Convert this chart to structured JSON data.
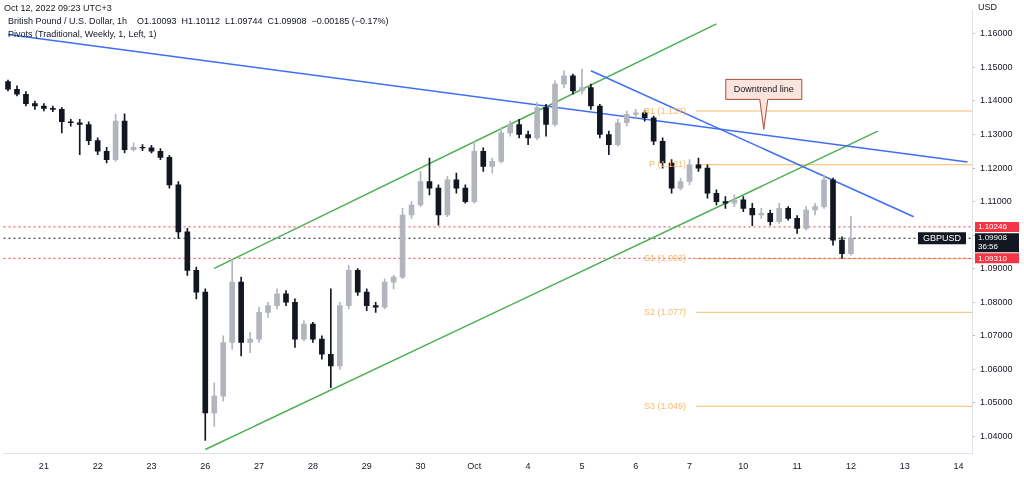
{
  "chart_data": {
    "type": "candlestick",
    "title": "British Pound / U.S. Dollar, 1h",
    "subtitle": "O1.10093  H1.10112  L1.09744  C1.09908  −0.00185 (−0.17%)",
    "ylabel": "USD",
    "annotations": [
      "Oct 12, 2022 09:23 UTC+3",
      "Pivots (Traditional, Weekly, 1, Left, 1)",
      "Downtrend line",
      "GBPUSD"
    ],
    "categories": [
      null,
      null,
      null,
      null,
      "21",
      null,
      null,
      null,
      null,
      null,
      "22",
      null,
      null,
      null,
      null,
      null,
      "23",
      null,
      null,
      null,
      null,
      null,
      "26",
      null,
      null,
      null,
      null,
      null,
      "27",
      null,
      null,
      null,
      null,
      null,
      "28",
      null,
      null,
      null,
      null,
      null,
      "29",
      null,
      null,
      null,
      null,
      null,
      "30",
      null,
      null,
      null,
      null,
      null,
      "Oct",
      null,
      null,
      null,
      null,
      null,
      "4",
      null,
      null,
      null,
      null,
      null,
      "5",
      null,
      null,
      null,
      null,
      null,
      "6",
      null,
      null,
      null,
      null,
      null,
      "7",
      null,
      null,
      null,
      null,
      null,
      "10",
      null,
      null,
      null,
      null,
      null,
      "11",
      null,
      null,
      null,
      null,
      null,
      "12",
      null,
      null,
      null,
      null,
      null,
      "13",
      null,
      null,
      null,
      null,
      null,
      "14",
      null
    ],
    "ylim": [
      1.035,
      1.167
    ],
    "yticks": [
      {
        "value": 1.04,
        "label": "1.04000"
      },
      {
        "value": 1.05,
        "label": "1.05000"
      },
      {
        "value": 1.06,
        "label": "1.06000"
      },
      {
        "value": 1.07,
        "label": "1.07000"
      },
      {
        "value": 1.08,
        "label": "1.08000"
      },
      {
        "value": 1.09,
        "label": "1.09000"
      },
      {
        "value": 1.1,
        "label": null
      },
      {
        "value": 1.11,
        "label": "1.11000"
      },
      {
        "value": 1.12,
        "label": "1.12000"
      },
      {
        "value": 1.13,
        "label": "1.13000"
      },
      {
        "value": 1.14,
        "label": "1.14000"
      },
      {
        "value": 1.15,
        "label": "1.15000"
      },
      {
        "value": 1.16,
        "label": "1.16000"
      }
    ],
    "ref_lines": [
      {
        "axis": "y",
        "value": 1.137,
        "label": "R1 (1.137)",
        "color": "#f9b96e",
        "line_style": "solid"
      },
      {
        "axis": "y",
        "value": 1.121,
        "label": "P (1.121)",
        "color": "#f9b96e",
        "line_style": "solid"
      },
      {
        "axis": "y",
        "value": 1.093,
        "label": "S1 (1.093)",
        "color": "#f9b96e",
        "line_style": "solid"
      },
      {
        "axis": "y",
        "value": 1.077,
        "label": "S2 (1.077)",
        "color": "#f9b96e",
        "line_style": "solid"
      },
      {
        "axis": "y",
        "value": 1.049,
        "label": "S3 (1.049)",
        "color": "#f9b96e",
        "line_style": "solid"
      },
      {
        "axis": "y",
        "value": 1.10246,
        "label": "1.10246",
        "color": "#f23645",
        "line_style": "dotted"
      },
      {
        "axis": "y",
        "value": 1.0931,
        "label": "1.09310",
        "color": "#f23645",
        "line_style": "dotted"
      },
      {
        "axis": "y",
        "value": 1.09908,
        "label": "1.09908\n36:56",
        "color": "#131722",
        "line_style": "dotted"
      }
    ],
    "series": [
      {
        "colors": [
          "#131722",
          "#131722",
          "#131722",
          "#131722",
          "#131722",
          "#131722",
          "#131722",
          "#131722",
          "#131722",
          "#131722",
          "#131722",
          "#131722",
          "#b2b5be",
          "#131722",
          "#b2b5be",
          "#131722",
          "#131722",
          "#131722",
          "#131722",
          "#131722",
          "#131722",
          "#131722",
          "#131722",
          "#b2b5be",
          "#b2b5be",
          "#b2b5be",
          "#131722",
          "#b2b5be",
          "#b2b5be",
          "#b2b5be",
          "#b2b5be",
          "#131722",
          "#131722",
          "#b2b5be",
          "#131722",
          "#131722",
          "#131722",
          "#b2b5be",
          "#b2b5be",
          "#131722",
          "#131722",
          "#131722",
          "#b2b5be",
          "#b2b5be",
          "#b2b5be",
          "#b2b5be",
          "#b2b5be",
          "#131722",
          "#131722",
          "#b2b5be",
          "#131722",
          "#131722",
          "#b2b5be",
          "#131722",
          "#b2b5be",
          "#b2b5be",
          "#b2b5be",
          "#131722",
          "#131722",
          "#b2b5be",
          "#131722",
          "#b2b5be",
          "#b2b5be",
          "#131722",
          "#b2b5be",
          "#131722",
          "#131722",
          "#131722",
          "#b2b5be",
          "#b2b5be",
          "#b2b5be",
          "#131722",
          "#131722",
          "#131722",
          "#131722",
          "#b2b5be",
          "#b2b5be",
          "#131722",
          "#131722",
          "#131722",
          "#131722",
          "#b2b5be",
          "#131722",
          "#131722",
          "#b2b5be",
          "#131722",
          "#b2b5be",
          "#131722",
          "#131722",
          "#b2b5be",
          "#b2b5be",
          "#b2b5be",
          "#131722",
          "#131722",
          "#b2b5be",
          null,
          null,
          null,
          null,
          null,
          null,
          null,
          null,
          null,
          null,
          null,
          null,
          null
        ],
        "ohlc": [
          [
            1.1458,
            1.1462,
            1.143,
            1.1435
          ],
          [
            1.1435,
            1.1445,
            1.1415,
            1.142
          ],
          [
            1.142,
            1.1428,
            1.1385,
            1.1392
          ],
          [
            1.1392,
            1.14,
            1.1375,
            1.1385
          ],
          [
            1.1385,
            1.1392,
            1.137,
            1.1378
          ],
          [
            1.1378,
            1.1385,
            1.1368,
            1.1375
          ],
          [
            1.1375,
            1.138,
            1.1305,
            1.1338
          ],
          [
            1.1338,
            1.1345,
            1.1325,
            1.1335
          ],
          [
            1.1335,
            1.1345,
            1.124,
            1.133
          ],
          [
            1.133,
            1.1338,
            1.127,
            1.1282
          ],
          [
            1.1282,
            1.129,
            1.124,
            1.125
          ],
          [
            1.125,
            1.1262,
            1.1215,
            1.1225
          ],
          [
            1.1225,
            1.136,
            1.122,
            1.134
          ],
          [
            1.134,
            1.1362,
            1.1245,
            1.1255
          ],
          [
            1.1255,
            1.1275,
            1.125,
            1.1262
          ],
          [
            1.1262,
            1.127,
            1.1252,
            1.126
          ],
          [
            1.126,
            1.1268,
            1.1245,
            1.125
          ],
          [
            1.125,
            1.1258,
            1.1225,
            1.1232
          ],
          [
            1.1232,
            1.1238,
            1.114,
            1.115
          ],
          [
            1.115,
            1.116,
            1.099,
            1.101
          ],
          [
            1.101,
            1.102,
            1.088,
            1.0895
          ],
          [
            1.0895,
            1.0905,
            1.081,
            1.083
          ],
          [
            1.083,
            1.084,
            1.0388,
            1.047
          ],
          [
            1.047,
            1.056,
            1.043,
            1.052
          ],
          [
            1.052,
            1.07,
            1.0505,
            1.068
          ],
          [
            1.068,
            1.0928,
            1.066,
            1.086
          ],
          [
            1.086,
            1.0875,
            1.064,
            1.068
          ],
          [
            1.068,
            1.071,
            1.065,
            1.069
          ],
          [
            1.069,
            1.0785,
            1.068,
            1.077
          ],
          [
            1.077,
            1.08,
            1.0755,
            1.079
          ],
          [
            1.079,
            1.084,
            1.078,
            1.0825
          ],
          [
            1.0825,
            1.0835,
            1.079,
            1.08
          ],
          [
            1.08,
            1.081,
            1.0665,
            1.069
          ],
          [
            1.069,
            1.0745,
            1.0685,
            1.0735
          ],
          [
            1.0735,
            1.074,
            1.068,
            1.069
          ],
          [
            1.069,
            1.07,
            1.063,
            1.0645
          ],
          [
            1.0645,
            1.084,
            1.0545,
            1.061
          ],
          [
            1.061,
            1.08,
            1.06,
            1.079
          ],
          [
            1.079,
            1.091,
            1.078,
            1.0895
          ],
          [
            1.0895,
            1.09,
            1.082,
            1.083
          ],
          [
            1.083,
            1.084,
            1.0775,
            1.079
          ],
          [
            1.079,
            1.08,
            1.077,
            1.0785
          ],
          [
            1.0785,
            1.087,
            1.078,
            1.086
          ],
          [
            1.086,
            1.088,
            1.084,
            1.0875
          ],
          [
            1.0875,
            1.108,
            1.087,
            1.106
          ],
          [
            1.106,
            1.11,
            1.105,
            1.109
          ],
          [
            1.109,
            1.119,
            1.1085,
            1.116
          ],
          [
            1.116,
            1.123,
            1.112,
            1.114
          ],
          [
            1.114,
            1.115,
            1.103,
            1.106
          ],
          [
            1.106,
            1.1175,
            1.1055,
            1.1165
          ],
          [
            1.1165,
            1.1185,
            1.1125,
            1.114
          ],
          [
            1.114,
            1.115,
            1.1095,
            1.11
          ],
          [
            1.11,
            1.128,
            1.1095,
            1.125
          ],
          [
            1.125,
            1.126,
            1.119,
            1.1205
          ],
          [
            1.1205,
            1.123,
            1.1185,
            1.122
          ],
          [
            1.122,
            1.132,
            1.1215,
            1.1305
          ],
          [
            1.1305,
            1.134,
            1.1295,
            1.133
          ],
          [
            1.133,
            1.1345,
            1.129,
            1.13
          ],
          [
            1.13,
            1.131,
            1.127,
            1.129
          ],
          [
            1.129,
            1.1395,
            1.1285,
            1.138
          ],
          [
            1.138,
            1.139,
            1.1295,
            1.133
          ],
          [
            1.133,
            1.146,
            1.1325,
            1.145
          ],
          [
            1.145,
            1.149,
            1.144,
            1.1475
          ],
          [
            1.1475,
            1.148,
            1.142,
            1.143
          ],
          [
            1.143,
            1.1495,
            1.142,
            1.144
          ],
          [
            1.144,
            1.145,
            1.1375,
            1.1385
          ],
          [
            1.1385,
            1.139,
            1.129,
            1.13
          ],
          [
            1.13,
            1.131,
            1.124,
            1.127
          ],
          [
            1.127,
            1.1345,
            1.1265,
            1.1335
          ],
          [
            1.1335,
            1.137,
            1.1325,
            1.136
          ],
          [
            1.136,
            1.1375,
            1.135,
            1.1365
          ],
          [
            1.1365,
            1.1372,
            1.134,
            1.135
          ],
          [
            1.135,
            1.1355,
            1.127,
            1.128
          ],
          [
            1.128,
            1.129,
            1.12,
            1.1215
          ],
          [
            1.1215,
            1.1225,
            1.1125,
            1.114
          ],
          [
            1.114,
            1.117,
            1.1135,
            1.116
          ],
          [
            1.116,
            1.1225,
            1.115,
            1.121
          ],
          [
            1.121,
            1.123,
            1.119,
            1.12
          ],
          [
            1.12,
            1.121,
            1.111,
            1.1125
          ],
          [
            1.1125,
            1.1135,
            1.109,
            1.11
          ],
          [
            1.11,
            1.1115,
            1.108,
            1.1095
          ],
          [
            1.1095,
            1.112,
            1.1085,
            1.1105
          ],
          [
            1.1105,
            1.1115,
            1.107,
            1.108
          ],
          [
            1.108,
            1.1095,
            1.1028,
            1.106
          ],
          [
            1.106,
            1.108,
            1.105,
            1.1065
          ],
          [
            1.1065,
            1.1075,
            1.103,
            1.104
          ],
          [
            1.104,
            1.1095,
            1.1035,
            1.108
          ],
          [
            1.108,
            1.1085,
            1.1045,
            1.105
          ],
          [
            1.105,
            1.1058,
            1.1005,
            1.102
          ],
          [
            1.102,
            1.1085,
            1.1015,
            1.1075
          ],
          [
            1.1075,
            1.1095,
            1.106,
            1.1085
          ],
          [
            1.1085,
            1.118,
            1.108,
            1.1165
          ],
          [
            1.1165,
            1.117,
            1.097,
            1.0985
          ],
          [
            1.0985,
            1.0995,
            1.0931,
            1.0945
          ],
          [
            1.0945,
            1.1056,
            1.094,
            1.09908
          ],
          null,
          null,
          null,
          null,
          null,
          null,
          null,
          null,
          null,
          null,
          null,
          null,
          null
        ]
      },
      {
        "type": "line",
        "color": "#3d6ef5",
        "values": [
          1.1598,
          null,
          null,
          null,
          null,
          null,
          null,
          null,
          null,
          null,
          null,
          null,
          null,
          null,
          null,
          null,
          null,
          null,
          null,
          null,
          null,
          null,
          null,
          null,
          null,
          null,
          null,
          null,
          null,
          null,
          null,
          null,
          null,
          null,
          null,
          null,
          null,
          null,
          null,
          null,
          null,
          null,
          null,
          null,
          null,
          null,
          null,
          null,
          null,
          null,
          null,
          null,
          null,
          null,
          null,
          null,
          null,
          null,
          null,
          null,
          null,
          null,
          null,
          null,
          null,
          null,
          null,
          null,
          null,
          null,
          null,
          null,
          null,
          null,
          null,
          null,
          null,
          null,
          null,
          null,
          null,
          null,
          null,
          null,
          null,
          null,
          null,
          null,
          null,
          null,
          null,
          null,
          null,
          null,
          null,
          null,
          null,
          null,
          null,
          null,
          null,
          null,
          null,
          null,
          null,
          null,
          null,
          1.1218
        ]
      },
      {
        "type": "line",
        "color": "#3d6ef5",
        "values": [
          null,
          null,
          null,
          null,
          null,
          null,
          null,
          null,
          null,
          null,
          null,
          null,
          null,
          null,
          null,
          null,
          null,
          null,
          null,
          null,
          null,
          null,
          null,
          null,
          null,
          null,
          null,
          null,
          null,
          null,
          null,
          null,
          null,
          null,
          null,
          null,
          null,
          null,
          null,
          null,
          null,
          null,
          null,
          null,
          null,
          null,
          null,
          null,
          null,
          null,
          null,
          null,
          null,
          null,
          null,
          null,
          null,
          null,
          null,
          null,
          null,
          null,
          null,
          null,
          null,
          1.149,
          null,
          null,
          null,
          null,
          null,
          null,
          null,
          null,
          null,
          null,
          null,
          null,
          null,
          null,
          null,
          null,
          null,
          null,
          null,
          null,
          null,
          null,
          null,
          null,
          null,
          null,
          null,
          null,
          null,
          null,
          null,
          null,
          null,
          null,
          null,
          1.1055,
          null,
          null,
          null,
          null,
          null,
          null
        ]
      },
      {
        "type": "line",
        "color": "#4caf50",
        "values": [
          null,
          null,
          null,
          null,
          null,
          null,
          null,
          null,
          null,
          null,
          null,
          null,
          null,
          null,
          null,
          null,
          null,
          null,
          null,
          null,
          null,
          null,
          null,
          1.0901,
          null,
          null,
          null,
          null,
          null,
          null,
          null,
          null,
          null,
          null,
          null,
          null,
          null,
          null,
          null,
          null,
          null,
          null,
          null,
          null,
          null,
          null,
          null,
          null,
          null,
          null,
          null,
          null,
          null,
          null,
          null,
          null,
          null,
          null,
          null,
          null,
          null,
          null,
          null,
          null,
          null,
          null,
          null,
          null,
          null,
          null,
          null,
          null,
          null,
          null,
          null,
          null,
          null,
          null,
          null,
          1.163,
          null,
          null,
          null,
          null,
          null,
          null,
          null,
          null,
          null,
          null,
          null,
          null,
          null,
          null,
          null,
          null,
          null,
          null,
          null,
          null,
          null,
          null,
          null,
          null,
          null,
          null,
          null,
          null
        ]
      },
      {
        "type": "line",
        "color": "#4caf50",
        "values": [
          null,
          null,
          null,
          null,
          null,
          null,
          null,
          null,
          null,
          null,
          null,
          null,
          null,
          null,
          null,
          null,
          null,
          null,
          null,
          null,
          null,
          null,
          1.0361,
          null,
          null,
          null,
          null,
          null,
          null,
          null,
          null,
          null,
          null,
          null,
          null,
          null,
          null,
          null,
          null,
          null,
          null,
          null,
          null,
          null,
          null,
          null,
          null,
          null,
          null,
          null,
          null,
          null,
          null,
          null,
          null,
          null,
          null,
          null,
          null,
          null,
          null,
          null,
          null,
          null,
          null,
          null,
          null,
          null,
          null,
          null,
          null,
          null,
          null,
          null,
          null,
          null,
          null,
          null,
          null,
          null,
          null,
          null,
          null,
          null,
          null,
          null,
          null,
          null,
          null,
          null,
          null,
          null,
          null,
          null,
          null,
          null,
          null,
          1.131,
          null,
          null,
          null,
          null,
          null,
          null,
          null,
          null,
          null,
          null
        ]
      }
    ]
  }
}
